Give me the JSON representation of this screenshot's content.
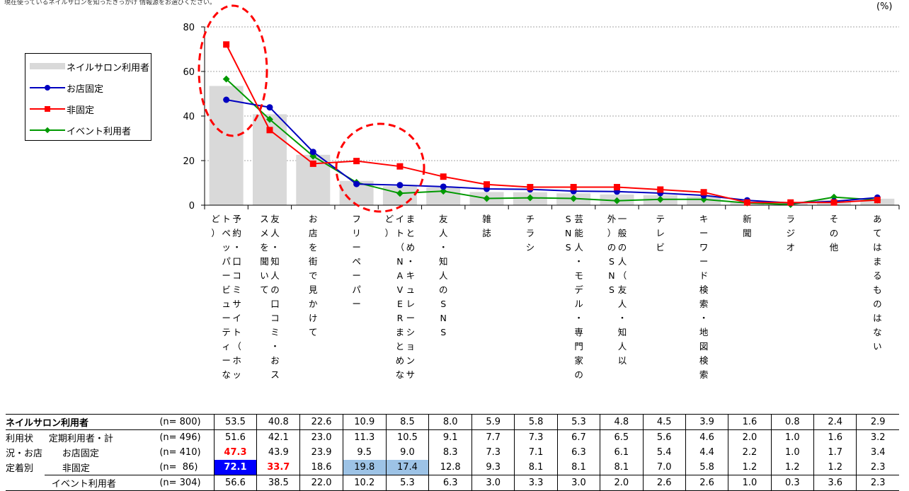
{
  "note": "現在使っているネイルサロンを知ったきっかけ 情報源をお選びください。",
  "unit": "(%)",
  "legend": {
    "bar": "ネイルサロン利用者",
    "fixed": "お店固定",
    "nonfixed": "非固定",
    "event": "イベント利用者"
  },
  "colors": {
    "bar": "#d9d9d9",
    "fixed": "#0000c0",
    "nonfixed": "#ff0000",
    "event": "#009900",
    "circle": "#ff0000"
  },
  "chart_data": {
    "type": "bar",
    "categories": [
      "予約・口コミサイト（ホットペッパービューティーなど）",
      "友人・知人の口コミ・おススメを聞いて",
      "お店を街で見かけて",
      "フリーペーパー",
      "まとめ・キュレーションサイト（NAVERまとめなど）",
      "友人・知人のSNS",
      "雑誌",
      "チラシ",
      "芸能人・モデル・専門家のSNS",
      "一般の人（友人・知人以外）のSNS",
      "テレビ",
      "キーワード検索・地図検索",
      "新聞",
      "ラジオ",
      "その他",
      "あてはまるものはない"
    ],
    "yticks": [
      "0",
      "20",
      "40",
      "60",
      "80"
    ],
    "ylim": [
      0,
      80
    ],
    "series": [
      {
        "name": "ネイルサロン利用者",
        "type": "bar",
        "values": [
          53.5,
          40.8,
          22.6,
          10.9,
          8.5,
          8.0,
          5.9,
          5.8,
          5.3,
          4.8,
          4.5,
          3.9,
          1.6,
          0.8,
          2.4,
          2.9
        ]
      },
      {
        "name": "お店固定",
        "type": "line",
        "values": [
          47.3,
          43.9,
          23.9,
          9.5,
          9.0,
          8.3,
          7.3,
          7.1,
          6.3,
          6.1,
          5.4,
          4.4,
          2.2,
          1.0,
          1.7,
          3.4
        ]
      },
      {
        "name": "非固定",
        "type": "line",
        "values": [
          72.1,
          33.7,
          18.6,
          19.8,
          17.4,
          12.8,
          9.3,
          8.1,
          8.1,
          8.1,
          7.0,
          5.8,
          1.2,
          1.2,
          1.2,
          2.3
        ]
      },
      {
        "name": "イベント利用者",
        "type": "line",
        "values": [
          56.6,
          38.5,
          22.0,
          10.2,
          5.3,
          6.3,
          3.0,
          3.3,
          3.0,
          2.0,
          2.6,
          2.6,
          1.0,
          0.3,
          3.6,
          2.3
        ]
      }
    ],
    "grid": true,
    "legend_position": "top-left"
  },
  "vertical_labels": [
    [
      "予約・口コミサイト（ホッ",
      "トペッパービューティーな",
      "ど）"
    ],
    [
      "友人・知人の口コミ・おス",
      "スメを聞いて"
    ],
    [
      "お店を街で見かけて"
    ],
    [
      "フリーペーパー"
    ],
    [
      "まとめ・キュレーションサ",
      "イト（NAVERまとめな",
      "ど）"
    ],
    [
      "友人・知人のSNS"
    ],
    [
      "雑誌"
    ],
    [
      "チラシ"
    ],
    [
      "芸能人・モデル・専門家の",
      "SNS"
    ],
    [
      "一般の人（友人・知人以",
      "外）のSNS"
    ],
    [
      "テレビ"
    ],
    [
      "キーワード検索・地図検索"
    ],
    [
      "新聞"
    ],
    [
      "ラジオ"
    ],
    [
      "その他"
    ],
    [
      "あてはまるものはない"
    ]
  ],
  "table": {
    "rows": [
      {
        "g1": "ネイルサロン利用者",
        "g2": "",
        "n": "(n= 800)",
        "vals": [
          "53.5",
          "40.8",
          "22.6",
          "10.9",
          "8.5",
          "8.0",
          "5.9",
          "5.8",
          "5.3",
          "4.8",
          "4.5",
          "3.9",
          "1.6",
          "0.8",
          "2.4",
          "2.9"
        ]
      },
      {
        "g1": "利用状",
        "g2": "定期利用者・計",
        "n": "(n= 496)",
        "vals": [
          "51.6",
          "42.1",
          "23.0",
          "11.3",
          "10.5",
          "9.1",
          "7.7",
          "7.3",
          "6.7",
          "6.5",
          "5.6",
          "4.6",
          "2.0",
          "1.0",
          "1.6",
          "3.2"
        ]
      },
      {
        "g1": "況・お店",
        "g2": "お店固定",
        "n": "(n= 410)",
        "vals": [
          "47.3",
          "43.9",
          "23.9",
          "9.5",
          "9.0",
          "8.3",
          "7.3",
          "7.1",
          "6.3",
          "6.1",
          "5.4",
          "4.4",
          "2.2",
          "1.0",
          "1.7",
          "3.4"
        ]
      },
      {
        "g1": "定着別",
        "g2": "非固定",
        "n": "(n=  86)",
        "vals": [
          "72.1",
          "33.7",
          "18.6",
          "19.8",
          "17.4",
          "12.8",
          "9.3",
          "8.1",
          "8.1",
          "8.1",
          "7.0",
          "5.8",
          "1.2",
          "1.2",
          "1.2",
          "2.3"
        ]
      },
      {
        "g1": "",
        "g2": "イベント利用者",
        "n": "(n= 304)",
        "vals": [
          "56.6",
          "38.5",
          "22.0",
          "10.2",
          "5.3",
          "6.3",
          "3.0",
          "3.3",
          "3.0",
          "2.0",
          "2.6",
          "2.6",
          "1.0",
          "0.3",
          "3.6",
          "2.3"
        ]
      }
    ]
  }
}
